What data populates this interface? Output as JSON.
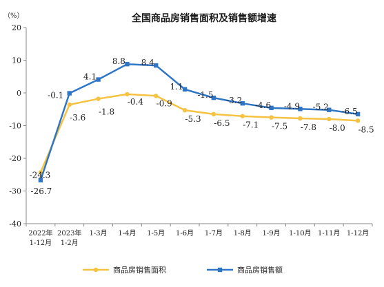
{
  "chart_data": {
    "type": "line",
    "title": "全国商品房销售面积及销售额增速",
    "unit_label": "（%）",
    "ylim": [
      -40,
      20
    ],
    "yticks": [
      "20",
      "10",
      "0",
      "-10",
      "-20",
      "-30",
      "-40"
    ],
    "categories": [
      [
        "2022年",
        "1-12月"
      ],
      [
        "2023年",
        "1-2月"
      ],
      [
        "1-3月"
      ],
      [
        "1-4月"
      ],
      [
        "1-5月"
      ],
      [
        "1-6月"
      ],
      [
        "1-7月"
      ],
      [
        "1-8月"
      ],
      [
        "1-9月"
      ],
      [
        "1-10月"
      ],
      [
        "1-11月"
      ],
      [
        "1-12月"
      ]
    ],
    "series": [
      {
        "name": "商品房销售面积",
        "color": "#F5C242",
        "marker": "circle",
        "values": [
          -24.3,
          -3.6,
          -1.8,
          -0.4,
          -0.9,
          -5.3,
          -6.5,
          -7.1,
          -7.5,
          -7.8,
          -8.0,
          -8.5
        ],
        "labels": [
          "-24.3",
          "-3.6",
          "-1.8",
          "-0.4",
          "-0.9",
          "-5.3",
          "-6.5",
          "-7.1",
          "-7.5",
          "-7.8",
          "-8.0",
          "-8.5"
        ]
      },
      {
        "name": "商品房销售额",
        "color": "#2E75C6",
        "marker": "square",
        "values": [
          -26.7,
          -0.1,
          4.1,
          8.8,
          8.4,
          1.1,
          -1.5,
          -3.2,
          -4.6,
          -4.9,
          -5.2,
          -6.5
        ],
        "labels": [
          "-26.7",
          "-0.1",
          "4.1",
          "8.8",
          "8.4",
          "1.1",
          "-1.5",
          "-3.2",
          "-4.6",
          "-4.9",
          "-5.2",
          "-6.5"
        ]
      }
    ],
    "legend_position": "bottom",
    "grid": false
  }
}
